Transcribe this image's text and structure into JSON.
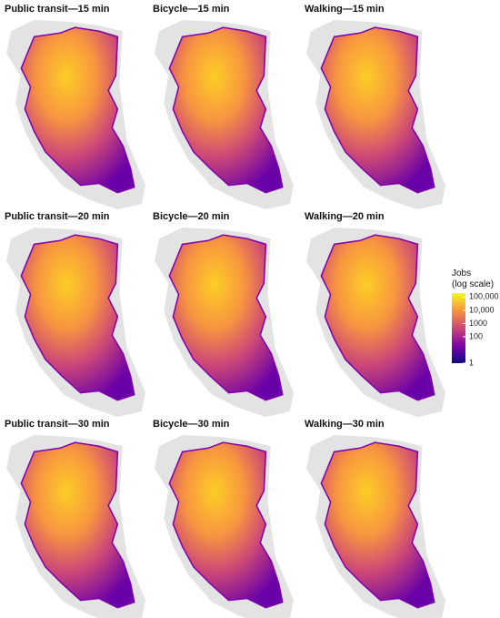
{
  "panels": [
    {
      "title": "Public transit—15 min"
    },
    {
      "title": "Bicycle—15 min"
    },
    {
      "title": "Walking—15 min"
    },
    {
      "title": "Public transit—20 min"
    },
    {
      "title": "Bicycle—20 min"
    },
    {
      "title": "Walking—20 min"
    },
    {
      "title": "Public transit—30 min"
    },
    {
      "title": "Bicycle—30 min"
    },
    {
      "title": "Walking—30 min"
    }
  ],
  "legend": {
    "title": [
      "Jobs",
      "(log scale)"
    ],
    "scale": "log",
    "lim": [
      1,
      200000
    ],
    "ticks": [
      1,
      100,
      1000,
      {
        "value": 10000,
        "label": "10,000"
      },
      {
        "value": 100000,
        "label": "100,000"
      }
    ],
    "colors": [
      "#0d0887",
      "#7e03a8",
      "#cc4778",
      "#f89540",
      "#f0f921"
    ]
  }
}
